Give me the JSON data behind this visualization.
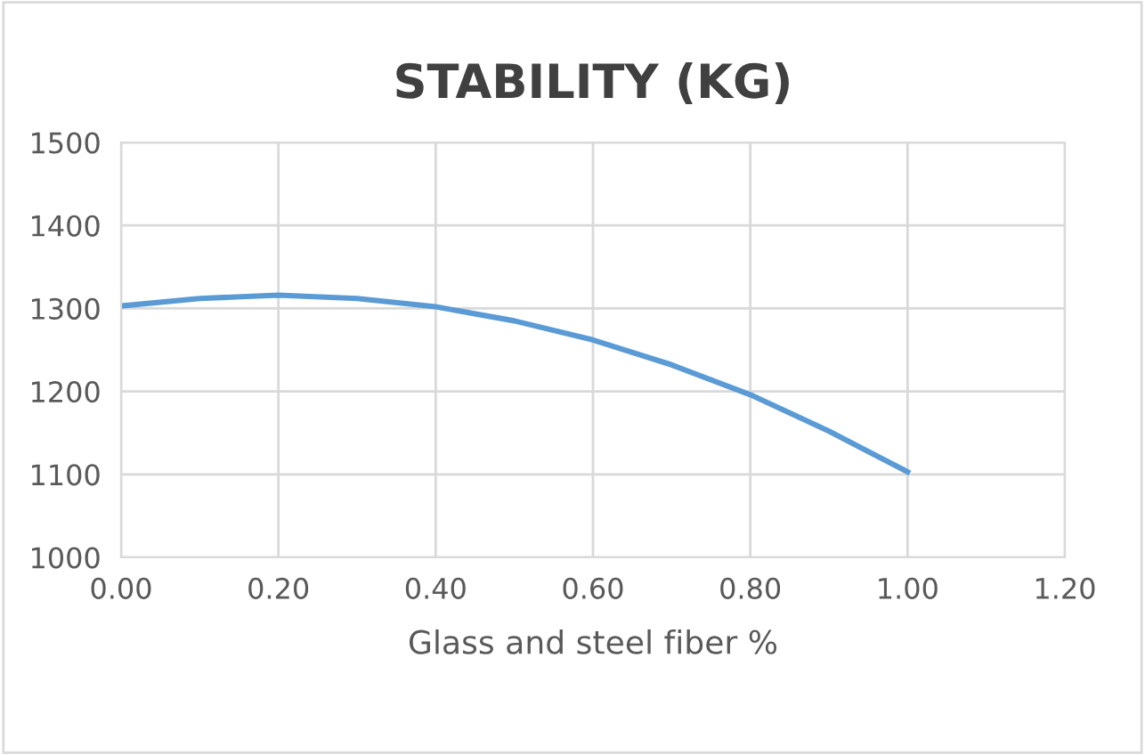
{
  "chart_data": {
    "type": "line",
    "title": "STABILITY (KG)",
    "xlabel": "Glass and steel fiber %",
    "x": [
      0.0,
      0.1,
      0.2,
      0.3,
      0.4,
      0.5,
      0.6,
      0.7,
      0.8,
      0.9,
      1.0
    ],
    "series": [
      {
        "color": "#5b9bd5",
        "values": [
          1303,
          1312,
          1316,
          1312,
          1302,
          1285,
          1262,
          1232,
          1196,
          1152,
          1103
        ]
      }
    ],
    "xlim": [
      0,
      1.2
    ],
    "xticks": [
      {
        "value": 0,
        "label": "0.00"
      },
      {
        "value": 0.2,
        "label": "0.20"
      },
      {
        "value": 0.4,
        "label": "0.40"
      },
      {
        "value": 0.6,
        "label": "0.60"
      },
      {
        "value": 0.8,
        "label": "0.80"
      },
      {
        "value": 1.0,
        "label": "1.00"
      },
      {
        "value": 1.2,
        "label": "1.20"
      }
    ],
    "ylim": [
      1000,
      1500
    ],
    "yticks": [
      1000,
      1100,
      1200,
      1300,
      1400,
      1500
    ],
    "grid": true,
    "marker": "none",
    "line_style": "solid",
    "legend": false
  }
}
